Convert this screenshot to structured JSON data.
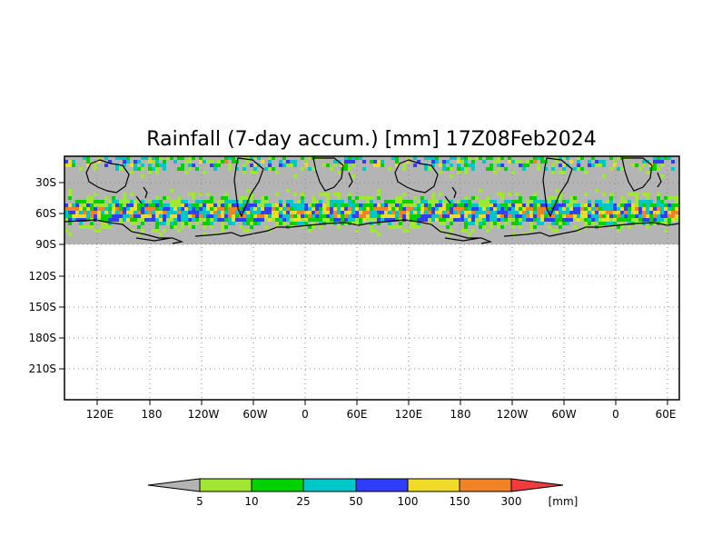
{
  "title": "Rainfall (7-day accum.) [mm] 17Z08Feb2024",
  "y_axis": {
    "ticks": [
      "30S",
      "60S",
      "90S",
      "120S",
      "150S",
      "180S",
      "210S"
    ]
  },
  "x_axis": {
    "ticks": [
      "120E",
      "180",
      "120W",
      "60W",
      "0",
      "60E",
      "120E",
      "180",
      "120W",
      "60W",
      "0",
      "60E"
    ]
  },
  "map": {
    "land_mask_color": "#b4b4b4",
    "coastline_color": "#000000"
  },
  "colorbar": {
    "unit": "[mm]",
    "labels": [
      "5",
      "10",
      "25",
      "50",
      "100",
      "150",
      "300"
    ],
    "colors": [
      "#b4b4b4",
      "#a0e632",
      "#00d200",
      "#00c8c8",
      "#2f3cfa",
      "#f0dc28",
      "#f08228",
      "#f03c3c"
    ]
  }
}
